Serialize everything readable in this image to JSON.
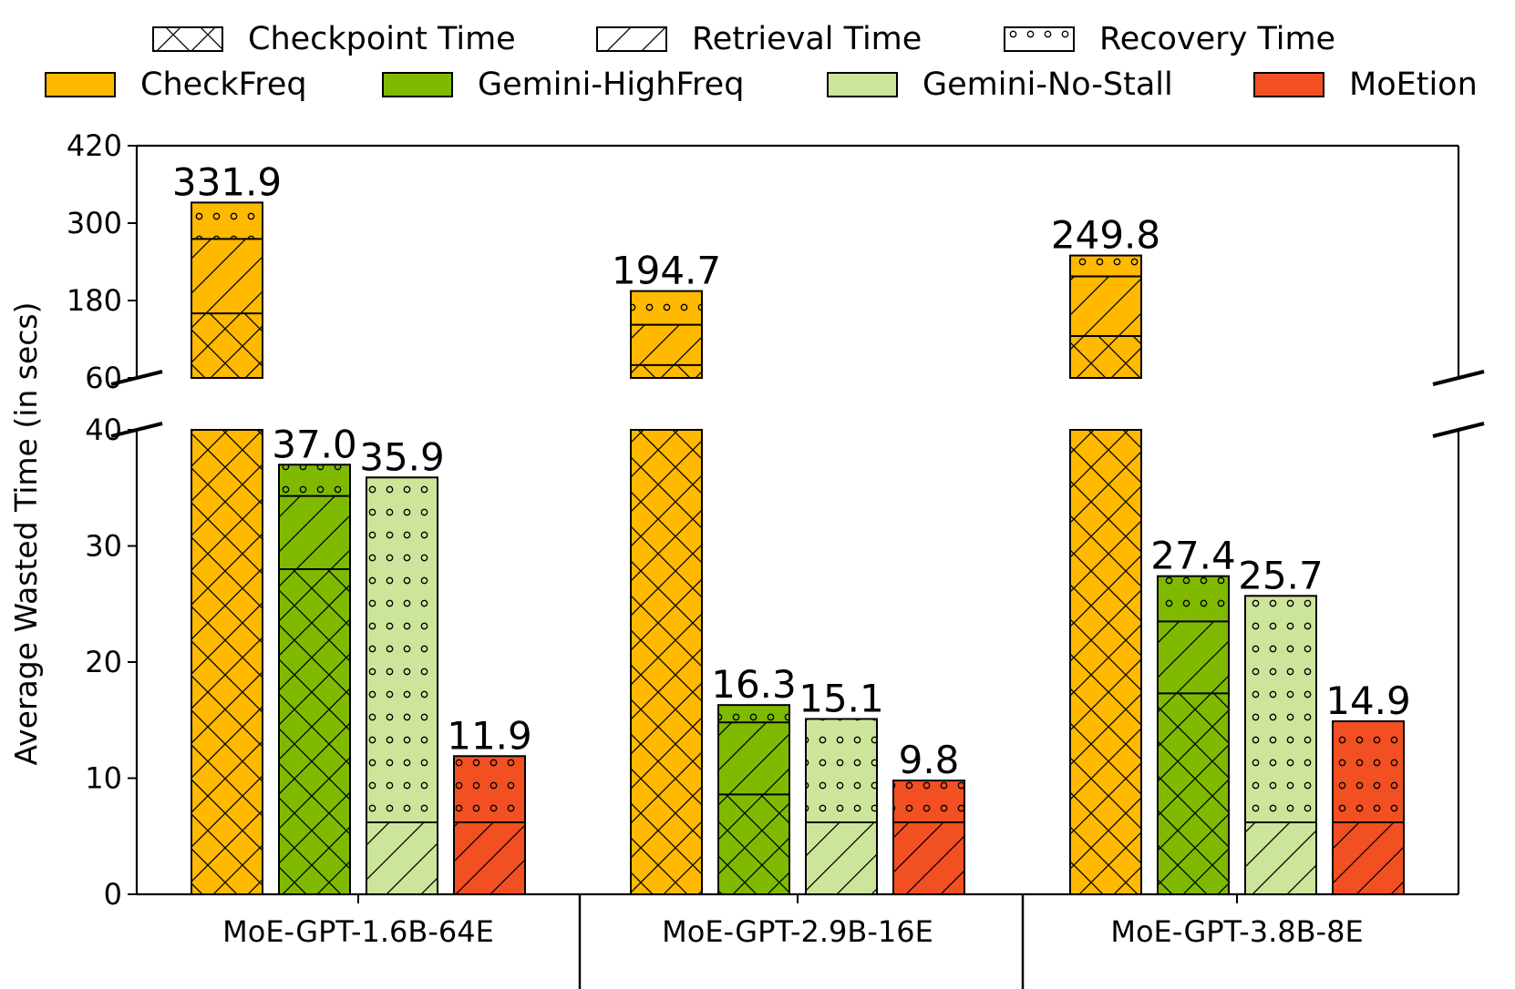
{
  "chart_data": {
    "type": "stacked-grouped-bar",
    "ylabel": "Average Wasted Time (in secs)",
    "xlabel": "",
    "broken_axis": {
      "lower_range": [
        0,
        40
      ],
      "upper_range": [
        60,
        420
      ],
      "lower_ticks": [
        "0",
        "10",
        "20",
        "30",
        "40"
      ],
      "upper_ticks": [
        "60",
        "180",
        "300",
        "420"
      ]
    },
    "categories": [
      "MoE-GPT-1.6B-64E",
      "MoE-GPT-2.9B-16E",
      "MoE-GPT-3.8B-8E"
    ],
    "components": [
      {
        "key": "checkpoint",
        "name": "Checkpoint Time",
        "pattern": "crosshatch"
      },
      {
        "key": "retrieval",
        "name": "Retrieval Time",
        "pattern": "diagonal"
      },
      {
        "key": "recovery",
        "name": "Recovery Time",
        "pattern": "dots"
      }
    ],
    "series": [
      {
        "name": "CheckFreq",
        "color": "#ffb900",
        "totals": [
          331.9,
          194.7,
          249.8
        ],
        "labels": [
          "331.9",
          "194.7",
          "249.8"
        ],
        "stacks": [
          {
            "checkpoint": 160,
            "retrieval": 115.5,
            "recovery": 56.4
          },
          {
            "checkpoint": 80,
            "retrieval": 62.4,
            "recovery": 52.3
          },
          {
            "checkpoint": 125,
            "retrieval": 92.5,
            "recovery": 32.3
          }
        ]
      },
      {
        "name": "Gemini-HighFreq",
        "color": "#7fba00",
        "totals": [
          37.0,
          16.3,
          27.4
        ],
        "labels": [
          "37.0",
          "16.3",
          "27.4"
        ],
        "stacks": [
          {
            "checkpoint": 28.0,
            "retrieval": 6.3,
            "recovery": 2.7
          },
          {
            "checkpoint": 8.6,
            "retrieval": 6.2,
            "recovery": 1.5
          },
          {
            "checkpoint": 17.3,
            "retrieval": 6.2,
            "recovery": 3.9
          }
        ]
      },
      {
        "name": "Gemini-No-Stall",
        "color": "#cde59a",
        "totals": [
          35.9,
          15.1,
          25.7
        ],
        "labels": [
          "35.9",
          "15.1",
          "25.7"
        ],
        "stacks": [
          {
            "checkpoint": 0,
            "retrieval": 6.2,
            "recovery": 29.7
          },
          {
            "checkpoint": 0,
            "retrieval": 6.2,
            "recovery": 8.9
          },
          {
            "checkpoint": 0,
            "retrieval": 6.2,
            "recovery": 19.5
          }
        ]
      },
      {
        "name": "MoEtion",
        "color": "#f25022",
        "totals": [
          11.9,
          9.8,
          14.9
        ],
        "labels": [
          "11.9",
          "9.8",
          "14.9"
        ],
        "stacks": [
          {
            "checkpoint": 0,
            "retrieval": 6.2,
            "recovery": 5.7
          },
          {
            "checkpoint": 0,
            "retrieval": 6.2,
            "recovery": 3.6
          },
          {
            "checkpoint": 0,
            "retrieval": 6.2,
            "recovery": 8.7
          }
        ]
      }
    ],
    "legend_position": "top"
  }
}
